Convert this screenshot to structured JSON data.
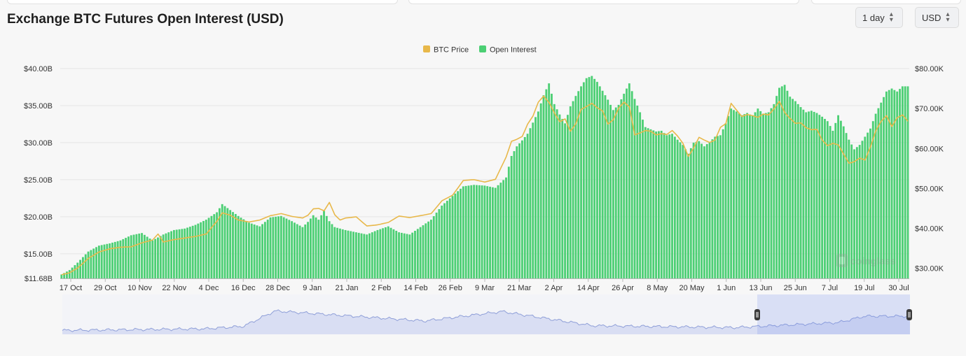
{
  "header": {
    "title": "Exchange BTC Futures Open Interest (USD)",
    "interval_label": "1 day",
    "currency_label": "USD"
  },
  "legend": [
    {
      "label": "BTC Price",
      "color": "#e8b84a"
    },
    {
      "label": "Open Interest",
      "color": "#4ccf74"
    }
  ],
  "watermark": "coinglass",
  "chart_data": {
    "type": "bar",
    "x_ticks": [
      "17 Oct",
      "29 Oct",
      "10 Nov",
      "22 Nov",
      "4 Dec",
      "16 Dec",
      "28 Dec",
      "9 Jan",
      "21 Jan",
      "2 Feb",
      "14 Feb",
      "26 Feb",
      "9 Mar",
      "21 Mar",
      "2 Apr",
      "14 Apr",
      "26 Apr",
      "8 May",
      "20 May",
      "1 Jun",
      "13 Jun",
      "25 Jun",
      "7 Jul",
      "19 Jul",
      "30 Jul"
    ],
    "left_axis": {
      "ticks": [
        "$40.00B",
        "$35.00B",
        "$30.00B",
        "$25.00B",
        "$20.00B",
        "$15.00B",
        "$11.68B"
      ],
      "ylim": [
        11.68,
        40
      ]
    },
    "right_axis": {
      "ticks": [
        "$80.00K",
        "$70.00K",
        "$60.00K",
        "$50.00K",
        "$40.00K",
        "$30.00K"
      ],
      "ylim": [
        27.5,
        80
      ]
    },
    "grid": true,
    "legend_position": "top-center",
    "series": [
      {
        "name": "Open Interest",
        "type": "bar",
        "unit": "B USD",
        "color": "#4ccf74",
        "keyframes": [
          [
            0,
            12.2
          ],
          [
            3,
            12.8
          ],
          [
            6,
            13.8
          ],
          [
            10,
            15.3
          ],
          [
            14,
            16.1
          ],
          [
            18,
            16.4
          ],
          [
            22,
            16.8
          ],
          [
            26,
            17.5
          ],
          [
            30,
            17.8
          ],
          [
            34,
            16.8
          ],
          [
            38,
            17.6
          ],
          [
            42,
            18.2
          ],
          [
            46,
            18.4
          ],
          [
            50,
            18.9
          ],
          [
            54,
            19.6
          ],
          [
            58,
            20.6
          ],
          [
            60,
            21.7
          ],
          [
            63,
            20.9
          ],
          [
            66,
            20.1
          ],
          [
            70,
            19.2
          ],
          [
            74,
            18.7
          ],
          [
            78,
            19.9
          ],
          [
            82,
            20.1
          ],
          [
            86,
            19.4
          ],
          [
            90,
            18.6
          ],
          [
            92,
            19.3
          ],
          [
            94,
            20.2
          ],
          [
            96,
            19.6
          ],
          [
            98,
            20.8
          ],
          [
            100,
            19.4
          ],
          [
            102,
            18.6
          ],
          [
            106,
            18.2
          ],
          [
            110,
            17.9
          ],
          [
            114,
            17.6
          ],
          [
            118,
            18.2
          ],
          [
            122,
            18.7
          ],
          [
            126,
            17.9
          ],
          [
            130,
            17.6
          ],
          [
            134,
            18.6
          ],
          [
            138,
            19.6
          ],
          [
            142,
            21.5
          ],
          [
            146,
            22.8
          ],
          [
            150,
            24.1
          ],
          [
            154,
            24.3
          ],
          [
            158,
            24.2
          ],
          [
            162,
            23.9
          ],
          [
            166,
            25.3
          ],
          [
            168,
            28.2
          ],
          [
            170,
            29.5
          ],
          [
            172,
            30.3
          ],
          [
            174,
            31.2
          ],
          [
            176,
            32.7
          ],
          [
            178,
            34.2
          ],
          [
            180,
            36.4
          ],
          [
            182,
            38.0
          ],
          [
            184,
            35.2
          ],
          [
            186,
            33.8
          ],
          [
            188,
            32.6
          ],
          [
            190,
            34.9
          ],
          [
            192,
            36.3
          ],
          [
            194,
            37.6
          ],
          [
            196,
            38.7
          ],
          [
            198,
            39.0
          ],
          [
            200,
            38.2
          ],
          [
            202,
            37.0
          ],
          [
            204,
            35.8
          ],
          [
            206,
            34.4
          ],
          [
            208,
            35.1
          ],
          [
            210,
            36.6
          ],
          [
            212,
            38.0
          ],
          [
            214,
            35.9
          ],
          [
            216,
            34.1
          ],
          [
            218,
            32.1
          ],
          [
            220,
            31.8
          ],
          [
            222,
            31.5
          ],
          [
            224,
            31.6
          ],
          [
            226,
            31.0
          ],
          [
            228,
            31.2
          ],
          [
            230,
            30.4
          ],
          [
            232,
            29.7
          ],
          [
            234,
            28.5
          ],
          [
            236,
            30.0
          ],
          [
            238,
            30.2
          ],
          [
            240,
            29.5
          ],
          [
            242,
            30.1
          ],
          [
            244,
            30.8
          ],
          [
            246,
            31.0
          ],
          [
            248,
            32.6
          ],
          [
            250,
            34.6
          ],
          [
            252,
            34.2
          ],
          [
            254,
            33.7
          ],
          [
            256,
            34.0
          ],
          [
            258,
            33.6
          ],
          [
            260,
            34.6
          ],
          [
            262,
            33.9
          ],
          [
            264,
            34.1
          ],
          [
            266,
            35.2
          ],
          [
            268,
            37.4
          ],
          [
            270,
            37.8
          ],
          [
            272,
            36.2
          ],
          [
            274,
            35.6
          ],
          [
            276,
            34.8
          ],
          [
            278,
            34.1
          ],
          [
            280,
            34.3
          ],
          [
            282,
            34.0
          ],
          [
            284,
            33.5
          ],
          [
            286,
            32.9
          ],
          [
            288,
            31.6
          ],
          [
            290,
            33.7
          ],
          [
            292,
            32.2
          ],
          [
            294,
            30.4
          ],
          [
            296,
            29.1
          ],
          [
            298,
            29.7
          ],
          [
            300,
            30.8
          ],
          [
            302,
            31.9
          ],
          [
            304,
            33.9
          ],
          [
            306,
            35.4
          ],
          [
            308,
            36.9
          ],
          [
            310,
            37.3
          ],
          [
            312,
            36.9
          ],
          [
            314,
            37.6
          ],
          [
            316,
            37.6
          ]
        ]
      },
      {
        "name": "BTC Price",
        "type": "line",
        "unit": "K USD",
        "color": "#e8b84a",
        "keyframes": [
          [
            0,
            28.4
          ],
          [
            3,
            28.9
          ],
          [
            6,
            30.1
          ],
          [
            10,
            32.5
          ],
          [
            14,
            34.1
          ],
          [
            18,
            34.9
          ],
          [
            22,
            35.3
          ],
          [
            26,
            35.4
          ],
          [
            30,
            36.4
          ],
          [
            34,
            37.1
          ],
          [
            36,
            38.6
          ],
          [
            38,
            36.6
          ],
          [
            42,
            37.2
          ],
          [
            46,
            37.6
          ],
          [
            50,
            38.0
          ],
          [
            54,
            38.6
          ],
          [
            58,
            41.8
          ],
          [
            60,
            43.9
          ],
          [
            63,
            43.3
          ],
          [
            66,
            42.1
          ],
          [
            70,
            41.6
          ],
          [
            74,
            42.1
          ],
          [
            78,
            43.2
          ],
          [
            82,
            43.7
          ],
          [
            86,
            43.0
          ],
          [
            90,
            42.6
          ],
          [
            92,
            43.3
          ],
          [
            94,
            44.9
          ],
          [
            96,
            45.0
          ],
          [
            98,
            44.4
          ],
          [
            100,
            46.5
          ],
          [
            102,
            43.4
          ],
          [
            104,
            42.1
          ],
          [
            106,
            42.6
          ],
          [
            110,
            42.9
          ],
          [
            114,
            40.6
          ],
          [
            118,
            40.9
          ],
          [
            122,
            41.5
          ],
          [
            126,
            43.1
          ],
          [
            130,
            42.7
          ],
          [
            134,
            43.2
          ],
          [
            138,
            43.7
          ],
          [
            142,
            46.9
          ],
          [
            146,
            48.3
          ],
          [
            150,
            52.0
          ],
          [
            154,
            52.2
          ],
          [
            158,
            51.6
          ],
          [
            162,
            52.3
          ],
          [
            166,
            57.9
          ],
          [
            168,
            61.8
          ],
          [
            170,
            62.3
          ],
          [
            172,
            63.0
          ],
          [
            174,
            66.1
          ],
          [
            176,
            68.1
          ],
          [
            178,
            71.6
          ],
          [
            180,
            73.1
          ],
          [
            182,
            71.5
          ],
          [
            184,
            68.9
          ],
          [
            186,
            66.7
          ],
          [
            188,
            67.4
          ],
          [
            190,
            64.3
          ],
          [
            192,
            66.2
          ],
          [
            194,
            69.8
          ],
          [
            196,
            70.5
          ],
          [
            198,
            71.3
          ],
          [
            200,
            70.2
          ],
          [
            202,
            69.4
          ],
          [
            204,
            66.1
          ],
          [
            206,
            67.2
          ],
          [
            208,
            70.1
          ],
          [
            210,
            71.6
          ],
          [
            212,
            70.4
          ],
          [
            214,
            63.4
          ],
          [
            216,
            63.9
          ],
          [
            218,
            64.5
          ],
          [
            220,
            64.3
          ],
          [
            222,
            63.4
          ],
          [
            224,
            63.7
          ],
          [
            226,
            63.5
          ],
          [
            228,
            64.5
          ],
          [
            230,
            63.1
          ],
          [
            232,
            61.3
          ],
          [
            234,
            58.0
          ],
          [
            236,
            60.1
          ],
          [
            238,
            62.8
          ],
          [
            240,
            62.1
          ],
          [
            242,
            61.5
          ],
          [
            244,
            62.1
          ],
          [
            246,
            65.3
          ],
          [
            248,
            66.2
          ],
          [
            250,
            71.3
          ],
          [
            252,
            69.6
          ],
          [
            254,
            68.0
          ],
          [
            256,
            68.5
          ],
          [
            258,
            68.2
          ],
          [
            260,
            67.8
          ],
          [
            262,
            68.6
          ],
          [
            264,
            68.4
          ],
          [
            266,
            69.9
          ],
          [
            268,
            71.8
          ],
          [
            270,
            69.0
          ],
          [
            272,
            67.5
          ],
          [
            274,
            66.3
          ],
          [
            276,
            66.4
          ],
          [
            278,
            65.2
          ],
          [
            280,
            64.7
          ],
          [
            282,
            64.8
          ],
          [
            284,
            62.1
          ],
          [
            286,
            60.7
          ],
          [
            288,
            61.3
          ],
          [
            290,
            60.9
          ],
          [
            292,
            58.6
          ],
          [
            294,
            56.3
          ],
          [
            296,
            56.7
          ],
          [
            298,
            57.6
          ],
          [
            300,
            57.1
          ],
          [
            302,
            60.4
          ],
          [
            304,
            64.4
          ],
          [
            306,
            66.8
          ],
          [
            308,
            68.2
          ],
          [
            310,
            65.5
          ],
          [
            312,
            67.7
          ],
          [
            314,
            68.4
          ],
          [
            316,
            66.8
          ]
        ]
      }
    ]
  },
  "navigator": {
    "range_label": "13 Jun – 30 Jul"
  }
}
